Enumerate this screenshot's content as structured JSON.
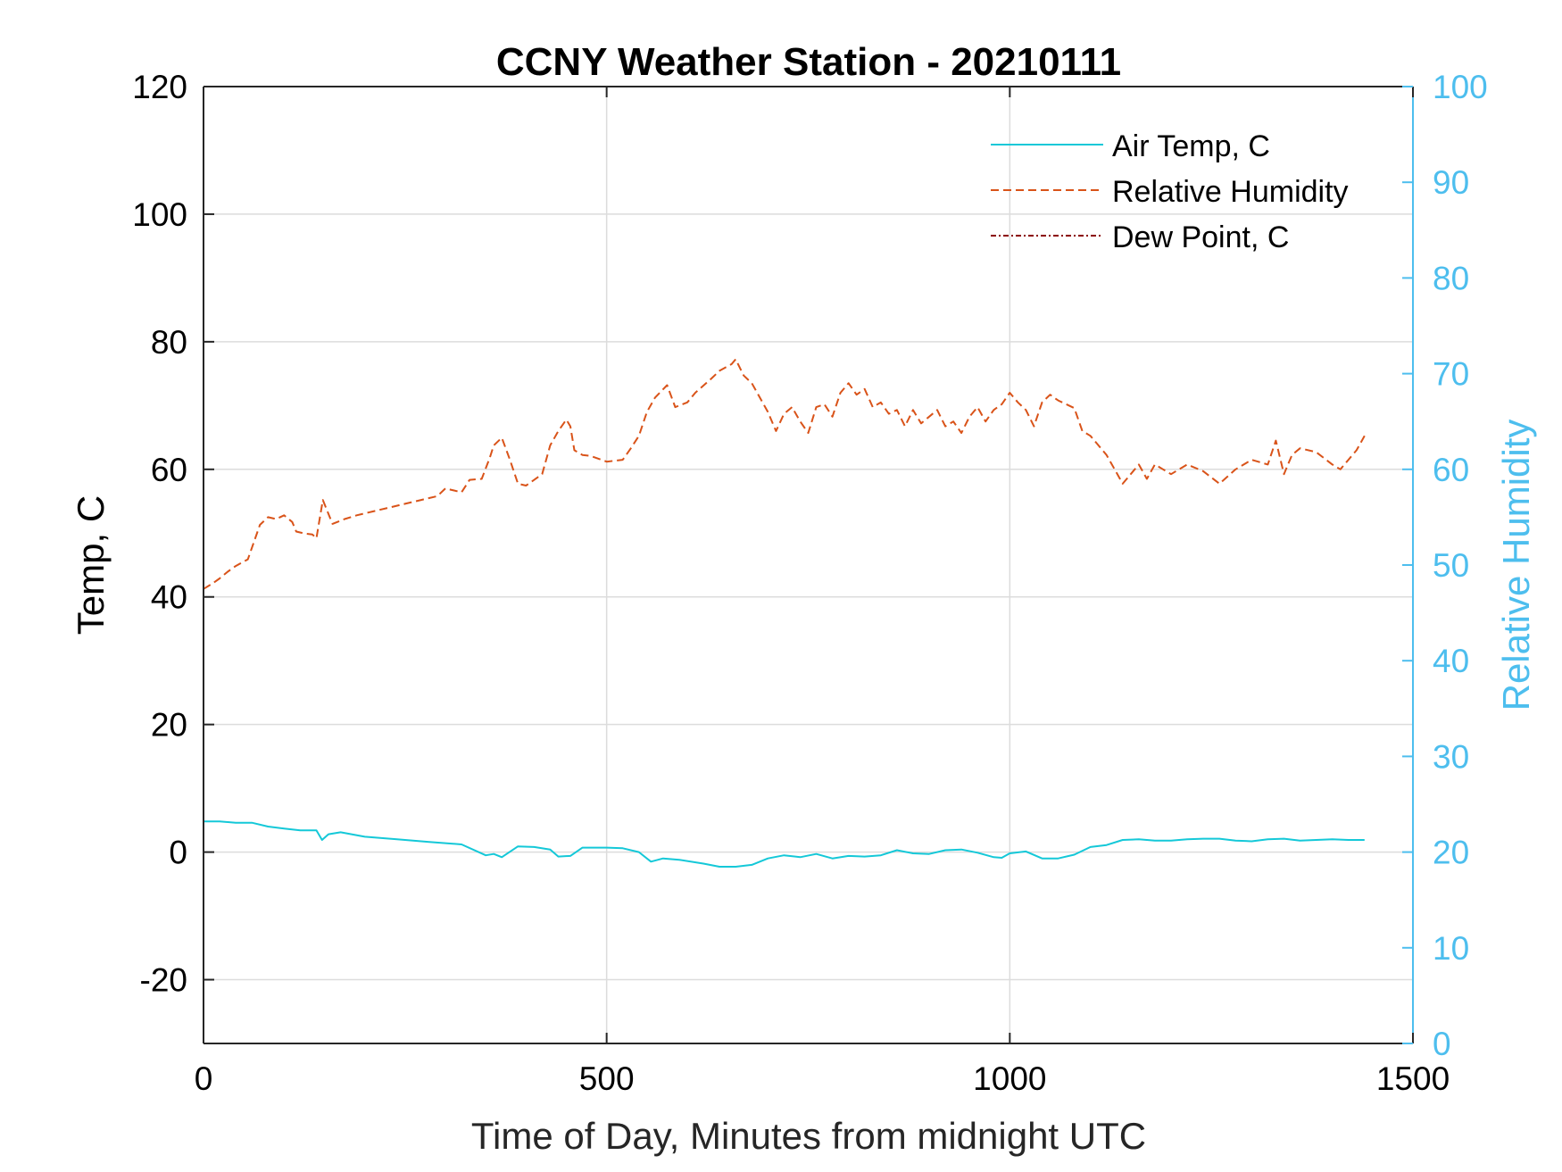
{
  "chart_data": {
    "type": "line",
    "title": "CCNY Weather Station - 20210111",
    "xlabel": "Time of Day, Minutes from midnight UTC",
    "ylabel_left": "Temp, C",
    "ylabel_right": "Relative Humidity",
    "xlim": [
      0,
      1500
    ],
    "ylim_left": [
      -30,
      120
    ],
    "ylim_right": [
      0,
      100
    ],
    "xticks": [
      0,
      500,
      1000,
      1500
    ],
    "yticks_left": [
      -20,
      0,
      20,
      40,
      60,
      80,
      100,
      120
    ],
    "yticks_right": [
      0,
      10,
      20,
      30,
      40,
      50,
      60,
      70,
      80,
      90,
      100
    ],
    "grid": true,
    "legend_location": "top-right",
    "colors": {
      "air_temp": "#14C8D8",
      "relative_humidity": "#D95319",
      "dew_point": "#8B0000",
      "right_axis": "#4DBEEE",
      "grid": "#DCDCDC"
    },
    "series": [
      {
        "name": "Air Temp, C",
        "axis": "left",
        "style": "solid",
        "x": [
          0,
          20,
          40,
          60,
          80,
          100,
          120,
          140,
          147,
          155,
          170,
          200,
          240,
          280,
          320,
          350,
          360,
          370,
          390,
          410,
          430,
          440,
          455,
          470,
          500,
          520,
          540,
          555,
          570,
          590,
          620,
          640,
          660,
          680,
          700,
          720,
          740,
          760,
          780,
          800,
          820,
          840,
          860,
          880,
          900,
          920,
          940,
          960,
          980,
          990,
          1000,
          1020,
          1040,
          1060,
          1080,
          1100,
          1120,
          1140,
          1160,
          1180,
          1200,
          1220,
          1240,
          1260,
          1280,
          1300,
          1320,
          1340,
          1360,
          1380,
          1400,
          1420,
          1440
        ],
        "values": [
          4.8,
          4.8,
          4.6,
          4.6,
          4.0,
          3.7,
          3.4,
          3.4,
          1.9,
          2.8,
          3.1,
          2.4,
          2.0,
          1.6,
          1.2,
          -0.5,
          -0.3,
          -0.8,
          0.9,
          0.8,
          0.4,
          -0.7,
          -0.6,
          0.7,
          0.7,
          0.6,
          0.0,
          -1.5,
          -1.0,
          -1.2,
          -1.8,
          -2.3,
          -2.3,
          -2.0,
          -1.0,
          -0.5,
          -0.8,
          -0.3,
          -1.0,
          -0.6,
          -0.7,
          -0.5,
          0.3,
          -0.2,
          -0.3,
          0.3,
          0.4,
          -0.1,
          -0.8,
          -0.9,
          -0.2,
          0.1,
          -1.0,
          -1.0,
          -0.4,
          0.8,
          1.1,
          1.9,
          2.0,
          1.8,
          1.8,
          2.0,
          2.1,
          2.1,
          1.8,
          1.7,
          2.0,
          2.1,
          1.8,
          1.9,
          2.0,
          1.9,
          1.9
        ]
      },
      {
        "name": "Relative Humidity",
        "axis": "right",
        "style": "dashed",
        "x": [
          0,
          10,
          20,
          30,
          40,
          55,
          70,
          80,
          90,
          100,
          110,
          115,
          125,
          135,
          140,
          148,
          160,
          175,
          190,
          210,
          230,
          250,
          270,
          290,
          300,
          320,
          330,
          345,
          355,
          360,
          370,
          380,
          390,
          400,
          420,
          430,
          440,
          450,
          455,
          460,
          470,
          480,
          500,
          520,
          530,
          540,
          550,
          560,
          575,
          585,
          600,
          610,
          630,
          640,
          655,
          660,
          670,
          680,
          690,
          700,
          710,
          720,
          730,
          740,
          750,
          760,
          770,
          780,
          790,
          800,
          810,
          820,
          830,
          840,
          850,
          860,
          870,
          880,
          890,
          900,
          910,
          920,
          930,
          940,
          950,
          960,
          970,
          980,
          990,
          1000,
          1010,
          1020,
          1030,
          1040,
          1050,
          1060,
          1070,
          1080,
          1090,
          1100,
          1110,
          1120,
          1130,
          1140,
          1150,
          1160,
          1170,
          1180,
          1190,
          1200,
          1220,
          1240,
          1260,
          1280,
          1300,
          1320,
          1330,
          1340,
          1350,
          1360,
          1380,
          1400,
          1410,
          1420,
          1430,
          1440
        ],
        "values": [
          47.5,
          48.0,
          48.6,
          49.3,
          49.9,
          50.6,
          54.2,
          55.0,
          54.8,
          55.2,
          54.5,
          53.5,
          53.3,
          53.2,
          52.8,
          56.8,
          54.3,
          54.8,
          55.2,
          55.6,
          56.0,
          56.4,
          56.8,
          57.2,
          58.0,
          57.6,
          58.9,
          59.0,
          61.2,
          62.5,
          63.3,
          61.0,
          58.5,
          58.3,
          59.5,
          62.5,
          64.0,
          65.2,
          64.5,
          62.0,
          61.5,
          61.4,
          60.8,
          61.0,
          62.2,
          63.5,
          66.0,
          67.5,
          68.8,
          66.5,
          67.0,
          68.0,
          69.5,
          70.3,
          71.0,
          71.5,
          69.8,
          69.0,
          67.5,
          66.0,
          64.0,
          65.8,
          66.5,
          65.0,
          63.8,
          66.5,
          66.8,
          65.5,
          68.0,
          69.0,
          67.8,
          68.4,
          66.5,
          67.0,
          65.8,
          66.2,
          64.5,
          66.2,
          64.8,
          65.5,
          66.2,
          64.5,
          65.0,
          63.8,
          65.5,
          66.5,
          65.0,
          66.2,
          66.8,
          68.0,
          67.0,
          66.2,
          64.5,
          67.0,
          67.8,
          67.2,
          66.8,
          66.4,
          64.0,
          63.5,
          62.5,
          61.5,
          60.0,
          58.5,
          59.5,
          60.5,
          59.0,
          60.5,
          60.0,
          59.5,
          60.5,
          59.8,
          58.5,
          60.0,
          61.0,
          60.5,
          63.0,
          59.5,
          61.5,
          62.2,
          61.8,
          60.5,
          60.0,
          61.0,
          62.0,
          63.5
        ]
      },
      {
        "name": "Dew Point, C",
        "axis": "left",
        "style": "dash-dot",
        "x": [],
        "values": []
      }
    ]
  }
}
